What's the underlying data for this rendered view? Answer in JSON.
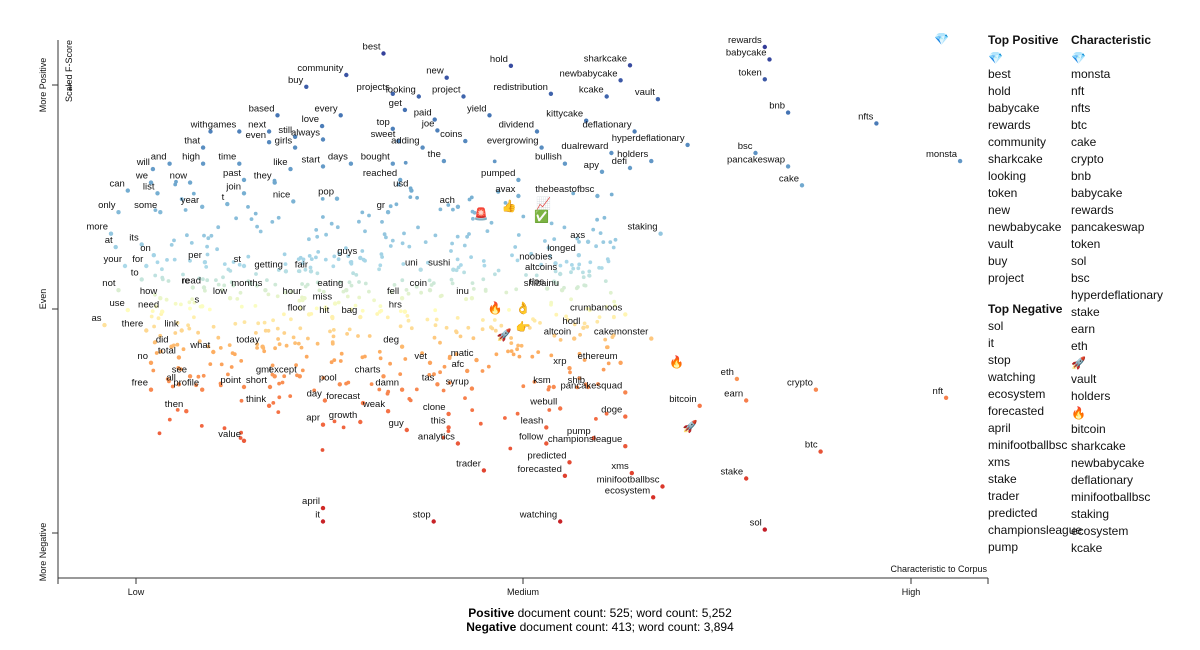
{
  "chart_data": {
    "type": "scatter",
    "title": "",
    "xlabel": "Characteristic to Corpus",
    "ylabel": "Scaled F-Score",
    "x_ticks": [
      "Low",
      "Medium",
      "High"
    ],
    "y_ticks": [
      "More Positive",
      "Even",
      "More Negative"
    ],
    "xlim": [
      0,
      1
    ],
    "ylim": [
      0,
      1
    ],
    "labeled_points": [
      {
        "term": "best",
        "x": 0.35,
        "y": 0.975
      },
      {
        "term": "hold",
        "x": 0.487,
        "y": 0.952
      },
      {
        "term": "community",
        "x": 0.31,
        "y": 0.935
      },
      {
        "term": "new",
        "x": 0.418,
        "y": 0.93
      },
      {
        "term": "buy",
        "x": 0.267,
        "y": 0.913
      },
      {
        "term": "projects",
        "x": 0.36,
        "y": 0.9
      },
      {
        "term": "looking",
        "x": 0.388,
        "y": 0.895
      },
      {
        "term": "project",
        "x": 0.436,
        "y": 0.895
      },
      {
        "term": "get",
        "x": 0.373,
        "y": 0.87
      },
      {
        "term": "paid",
        "x": 0.405,
        "y": 0.852
      },
      {
        "term": "yield",
        "x": 0.464,
        "y": 0.86
      },
      {
        "term": "every",
        "x": 0.304,
        "y": 0.86
      },
      {
        "term": "based",
        "x": 0.236,
        "y": 0.86
      },
      {
        "term": "love",
        "x": 0.284,
        "y": 0.84
      },
      {
        "term": "top",
        "x": 0.36,
        "y": 0.835
      },
      {
        "term": "joe",
        "x": 0.408,
        "y": 0.832
      },
      {
        "term": "coins",
        "x": 0.438,
        "y": 0.812
      },
      {
        "term": "with",
        "x": 0.164,
        "y": 0.83
      },
      {
        "term": "games",
        "x": 0.195,
        "y": 0.83
      },
      {
        "term": "next",
        "x": 0.227,
        "y": 0.83
      },
      {
        "term": "still",
        "x": 0.255,
        "y": 0.82
      },
      {
        "term": "always",
        "x": 0.285,
        "y": 0.815
      },
      {
        "term": "sweet",
        "x": 0.366,
        "y": 0.812
      },
      {
        "term": "even",
        "x": 0.227,
        "y": 0.81
      },
      {
        "term": "girls",
        "x": 0.255,
        "y": 0.8
      },
      {
        "term": "adding",
        "x": 0.392,
        "y": 0.8
      },
      {
        "term": "that",
        "x": 0.156,
        "y": 0.8
      },
      {
        "term": "the",
        "x": 0.415,
        "y": 0.775
      },
      {
        "term": "high",
        "x": 0.156,
        "y": 0.77
      },
      {
        "term": "time",
        "x": 0.195,
        "y": 0.77
      },
      {
        "term": "like",
        "x": 0.25,
        "y": 0.76
      },
      {
        "term": "start",
        "x": 0.285,
        "y": 0.765
      },
      {
        "term": "days",
        "x": 0.315,
        "y": 0.77
      },
      {
        "term": "bought",
        "x": 0.36,
        "y": 0.77
      },
      {
        "term": "and",
        "x": 0.12,
        "y": 0.77
      },
      {
        "term": "will",
        "x": 0.102,
        "y": 0.76
      },
      {
        "term": "reached",
        "x": 0.368,
        "y": 0.74
      },
      {
        "term": "now",
        "x": 0.142,
        "y": 0.735
      },
      {
        "term": "past",
        "x": 0.2,
        "y": 0.74
      },
      {
        "term": "they",
        "x": 0.233,
        "y": 0.735
      },
      {
        "term": "we",
        "x": 0.1,
        "y": 0.735
      },
      {
        "term": "usd",
        "x": 0.38,
        "y": 0.72
      },
      {
        "term": "list",
        "x": 0.107,
        "y": 0.715
      },
      {
        "term": "join",
        "x": 0.2,
        "y": 0.715
      },
      {
        "term": "can",
        "x": 0.075,
        "y": 0.72
      },
      {
        "term": "nice",
        "x": 0.253,
        "y": 0.7
      },
      {
        "term": "pop",
        "x": 0.3,
        "y": 0.705
      },
      {
        "term": "year",
        "x": 0.155,
        "y": 0.69
      },
      {
        "term": "t",
        "x": 0.182,
        "y": 0.695
      },
      {
        "term": "only",
        "x": 0.065,
        "y": 0.68
      },
      {
        "term": "some",
        "x": 0.11,
        "y": 0.68
      },
      {
        "term": "gr",
        "x": 0.355,
        "y": 0.68
      },
      {
        "term": "ach",
        "x": 0.43,
        "y": 0.69
      },
      {
        "term": "more",
        "x": 0.057,
        "y": 0.64
      },
      {
        "term": "its",
        "x": 0.09,
        "y": 0.62
      },
      {
        "term": "at",
        "x": 0.062,
        "y": 0.615
      },
      {
        "term": "on",
        "x": 0.103,
        "y": 0.6
      },
      {
        "term": "per",
        "x": 0.158,
        "y": 0.587
      },
      {
        "term": "st",
        "x": 0.2,
        "y": 0.58
      },
      {
        "term": "guys",
        "x": 0.325,
        "y": 0.595
      },
      {
        "term": "your",
        "x": 0.072,
        "y": 0.58
      },
      {
        "term": "for",
        "x": 0.095,
        "y": 0.58
      },
      {
        "term": "getting",
        "x": 0.245,
        "y": 0.57
      },
      {
        "term": "fair",
        "x": 0.272,
        "y": 0.57
      },
      {
        "term": "uni",
        "x": 0.39,
        "y": 0.573
      },
      {
        "term": "sushi",
        "x": 0.425,
        "y": 0.573
      },
      {
        "term": "to",
        "x": 0.09,
        "y": 0.555
      },
      {
        "term": "not",
        "x": 0.065,
        "y": 0.535
      },
      {
        "term": "re",
        "x": 0.145,
        "y": 0.54
      },
      {
        "term": "read",
        "x": 0.157,
        "y": 0.54
      },
      {
        "term": "months",
        "x": 0.223,
        "y": 0.535
      },
      {
        "term": "eating",
        "x": 0.31,
        "y": 0.535
      },
      {
        "term": "coin",
        "x": 0.4,
        "y": 0.535
      },
      {
        "term": "how",
        "x": 0.11,
        "y": 0.52
      },
      {
        "term": "low",
        "x": 0.185,
        "y": 0.52
      },
      {
        "term": "hour",
        "x": 0.265,
        "y": 0.52
      },
      {
        "term": "miss",
        "x": 0.298,
        "y": 0.51
      },
      {
        "term": "fell",
        "x": 0.37,
        "y": 0.52
      },
      {
        "term": "inu",
        "x": 0.445,
        "y": 0.52
      },
      {
        "term": "s",
        "x": 0.155,
        "y": 0.505
      },
      {
        "term": "use",
        "x": 0.075,
        "y": 0.498
      },
      {
        "term": "need",
        "x": 0.112,
        "y": 0.495
      },
      {
        "term": "floor",
        "x": 0.27,
        "y": 0.49
      },
      {
        "term": "hit",
        "x": 0.295,
        "y": 0.485
      },
      {
        "term": "bag",
        "x": 0.325,
        "y": 0.485
      },
      {
        "term": "hrs",
        "x": 0.373,
        "y": 0.495
      },
      {
        "term": "as",
        "x": 0.05,
        "y": 0.47
      },
      {
        "term": "there",
        "x": 0.095,
        "y": 0.46
      },
      {
        "term": "link",
        "x": 0.133,
        "y": 0.46
      },
      {
        "term": "today",
        "x": 0.22,
        "y": 0.43
      },
      {
        "term": "deg",
        "x": 0.37,
        "y": 0.43
      },
      {
        "term": "did",
        "x": 0.122,
        "y": 0.43
      },
      {
        "term": "what",
        "x": 0.167,
        "y": 0.42
      },
      {
        "term": "total",
        "x": 0.13,
        "y": 0.41
      },
      {
        "term": "no",
        "x": 0.1,
        "y": 0.4
      },
      {
        "term": "vet",
        "x": 0.4,
        "y": 0.4
      },
      {
        "term": "matic",
        "x": 0.45,
        "y": 0.405
      },
      {
        "term": "afc",
        "x": 0.44,
        "y": 0.385
      },
      {
        "term": "gmt",
        "x": 0.233,
        "y": 0.375
      },
      {
        "term": "except",
        "x": 0.26,
        "y": 0.375
      },
      {
        "term": "charts",
        "x": 0.35,
        "y": 0.375
      },
      {
        "term": "see",
        "x": 0.142,
        "y": 0.375
      },
      {
        "term": "all",
        "x": 0.13,
        "y": 0.36
      },
      {
        "term": "point",
        "x": 0.2,
        "y": 0.355
      },
      {
        "term": "short",
        "x": 0.228,
        "y": 0.355
      },
      {
        "term": "pool",
        "x": 0.303,
        "y": 0.36
      },
      {
        "term": "tas",
        "x": 0.408,
        "y": 0.36
      },
      {
        "term": "syrup",
        "x": 0.445,
        "y": 0.352
      },
      {
        "term": "free",
        "x": 0.1,
        "y": 0.35
      },
      {
        "term": "profile",
        "x": 0.155,
        "y": 0.35
      },
      {
        "term": "damn",
        "x": 0.37,
        "y": 0.35
      },
      {
        "term": "day",
        "x": 0.287,
        "y": 0.33
      },
      {
        "term": "forecast",
        "x": 0.328,
        "y": 0.325
      },
      {
        "term": "think",
        "x": 0.227,
        "y": 0.32
      },
      {
        "term": "weak",
        "x": 0.355,
        "y": 0.31
      },
      {
        "term": "then",
        "x": 0.138,
        "y": 0.31
      },
      {
        "term": "clone",
        "x": 0.42,
        "y": 0.305
      },
      {
        "term": "growth",
        "x": 0.325,
        "y": 0.29
      },
      {
        "term": "apr",
        "x": 0.285,
        "y": 0.285
      },
      {
        "term": "this",
        "x": 0.42,
        "y": 0.28
      },
      {
        "term": "guy",
        "x": 0.375,
        "y": 0.275
      },
      {
        "term": "value",
        "x": 0.2,
        "y": 0.255
      },
      {
        "term": "analytics",
        "x": 0.43,
        "y": 0.25
      },
      {
        "term": "trader",
        "x": 0.458,
        "y": 0.2
      },
      {
        "term": "april",
        "x": 0.285,
        "y": 0.13
      },
      {
        "term": "it",
        "x": 0.285,
        "y": 0.105
      },
      {
        "term": "stop",
        "x": 0.404,
        "y": 0.105
      },
      {
        "term": "sharkcake",
        "x": 0.615,
        "y": 0.953
      },
      {
        "term": "newbabycake",
        "x": 0.605,
        "y": 0.925
      },
      {
        "term": "redistribution",
        "x": 0.53,
        "y": 0.9
      },
      {
        "term": "kcake",
        "x": 0.59,
        "y": 0.895
      },
      {
        "term": "vault",
        "x": 0.645,
        "y": 0.89
      },
      {
        "term": "kittycake",
        "x": 0.568,
        "y": 0.85
      },
      {
        "term": "dividend",
        "x": 0.515,
        "y": 0.83
      },
      {
        "term": "deflationary",
        "x": 0.62,
        "y": 0.83
      },
      {
        "term": "evergrowing",
        "x": 0.52,
        "y": 0.8
      },
      {
        "term": "hyperdeflationary",
        "x": 0.677,
        "y": 0.805
      },
      {
        "term": "dualreward",
        "x": 0.595,
        "y": 0.79
      },
      {
        "term": "holders",
        "x": 0.638,
        "y": 0.775
      },
      {
        "term": "bullish",
        "x": 0.545,
        "y": 0.77
      },
      {
        "term": "defi",
        "x": 0.615,
        "y": 0.762
      },
      {
        "term": "apy",
        "x": 0.585,
        "y": 0.755
      },
      {
        "term": "pumped",
        "x": 0.495,
        "y": 0.74
      },
      {
        "term": "avax",
        "x": 0.495,
        "y": 0.71
      },
      {
        "term": "thebeastofbsc",
        "x": 0.58,
        "y": 0.71
      },
      {
        "term": "staking",
        "x": 0.648,
        "y": 0.64
      },
      {
        "term": "axs",
        "x": 0.57,
        "y": 0.625
      },
      {
        "term": "longed",
        "x": 0.56,
        "y": 0.6
      },
      {
        "term": "noobies",
        "x": 0.535,
        "y": 0.585
      },
      {
        "term": "altcoins",
        "x": 0.54,
        "y": 0.565
      },
      {
        "term": "shibainu",
        "x": 0.542,
        "y": 0.535
      },
      {
        "term": "tlos",
        "x": 0.526,
        "y": 0.538
      },
      {
        "term": "crumbanoos",
        "x": 0.61,
        "y": 0.49
      },
      {
        "term": "hodl",
        "x": 0.565,
        "y": 0.465
      },
      {
        "term": "cakemonster",
        "x": 0.638,
        "y": 0.445
      },
      {
        "term": "altcoin",
        "x": 0.555,
        "y": 0.445
      },
      {
        "term": "ethereum",
        "x": 0.605,
        "y": 0.4
      },
      {
        "term": "xrp",
        "x": 0.55,
        "y": 0.39
      },
      {
        "term": "shib",
        "x": 0.57,
        "y": 0.355
      },
      {
        "term": "ksm",
        "x": 0.533,
        "y": 0.355
      },
      {
        "term": "pancakesquad",
        "x": 0.61,
        "y": 0.345
      },
      {
        "term": "webull",
        "x": 0.54,
        "y": 0.315
      },
      {
        "term": "doge",
        "x": 0.61,
        "y": 0.3
      },
      {
        "term": "leash",
        "x": 0.525,
        "y": 0.28
      },
      {
        "term": "pump",
        "x": 0.576,
        "y": 0.26
      },
      {
        "term": "follow",
        "x": 0.525,
        "y": 0.25
      },
      {
        "term": "championsleague",
        "x": 0.61,
        "y": 0.245
      },
      {
        "term": "predicted",
        "x": 0.55,
        "y": 0.215
      },
      {
        "term": "forecasted",
        "x": 0.545,
        "y": 0.19
      },
      {
        "term": "xms",
        "x": 0.617,
        "y": 0.195
      },
      {
        "term": "minifootballbsc",
        "x": 0.65,
        "y": 0.17
      },
      {
        "term": "ecosystem",
        "x": 0.64,
        "y": 0.15
      },
      {
        "term": "watching",
        "x": 0.54,
        "y": 0.105
      },
      {
        "term": "rewards",
        "x": 0.76,
        "y": 0.987
      },
      {
        "term": "babycake",
        "x": 0.765,
        "y": 0.964
      },
      {
        "term": "token",
        "x": 0.76,
        "y": 0.927
      },
      {
        "term": "bnb",
        "x": 0.785,
        "y": 0.865
      },
      {
        "term": "nfts",
        "x": 0.88,
        "y": 0.845
      },
      {
        "term": "bsc",
        "x": 0.75,
        "y": 0.79
      },
      {
        "term": "pancakeswap",
        "x": 0.785,
        "y": 0.765
      },
      {
        "term": "cake",
        "x": 0.8,
        "y": 0.73
      },
      {
        "term": "monsta",
        "x": 0.97,
        "y": 0.775
      },
      {
        "term": "eth",
        "x": 0.73,
        "y": 0.37
      },
      {
        "term": "earn",
        "x": 0.74,
        "y": 0.33
      },
      {
        "term": "crypto",
        "x": 0.815,
        "y": 0.35
      },
      {
        "term": "nft",
        "x": 0.955,
        "y": 0.335
      },
      {
        "term": "bitcoin",
        "x": 0.69,
        "y": 0.32
      },
      {
        "term": "btc",
        "x": 0.82,
        "y": 0.235
      },
      {
        "term": "stake",
        "x": 0.74,
        "y": 0.185
      },
      {
        "term": "sol",
        "x": 0.76,
        "y": 0.09
      }
    ],
    "emoji_points": [
      {
        "glyph": "💎",
        "x": 0.95,
        "y": 1.0
      },
      {
        "glyph": "🚀",
        "x": 0.68,
        "y": 0.28
      },
      {
        "glyph": "🔥",
        "x": 0.665,
        "y": 0.4
      },
      {
        "glyph": "🔥",
        "x": 0.47,
        "y": 0.5
      },
      {
        "glyph": "👍",
        "x": 0.485,
        "y": 0.69
      },
      {
        "glyph": "👉",
        "x": 0.5,
        "y": 0.465
      },
      {
        "glyph": "📈",
        "x": 0.522,
        "y": 0.695
      },
      {
        "glyph": "✅",
        "x": 0.52,
        "y": 0.67
      },
      {
        "glyph": "🚨",
        "x": 0.455,
        "y": 0.675
      },
      {
        "glyph": "👌",
        "x": 0.5,
        "y": 0.5
      },
      {
        "glyph": "🚀",
        "x": 0.48,
        "y": 0.45
      }
    ],
    "legend": {
      "top_positive": {
        "heading": "Top Positive",
        "icon": "💎",
        "terms": [
          "best",
          "hold",
          "babycake",
          "rewards",
          "community",
          "sharkcake",
          "looking",
          "token",
          "new",
          "newbabycake",
          "vault",
          "buy",
          "project"
        ]
      },
      "top_negative": {
        "heading": "Top Negative",
        "terms": [
          "sol",
          "it",
          "stop",
          "watching",
          "ecosystem",
          "forecasted",
          "april",
          "minifootballbsc",
          "xms",
          "stake",
          "trader",
          "predicted",
          "championsleague",
          "pump"
        ]
      },
      "characteristic": {
        "heading": "Characteristic",
        "groups": [
          {
            "icon": "💎",
            "terms": [
              "monsta",
              "nft",
              "nfts",
              "btc",
              "cake",
              "crypto",
              "bnb",
              "babycake",
              "rewards",
              "pancakeswap",
              "token",
              "sol",
              "bsc",
              "hyperdeflationary",
              "stake",
              "earn",
              "eth"
            ]
          },
          {
            "icon": "🚀",
            "terms": [
              "vault",
              "holders"
            ]
          },
          {
            "icon": "🔥",
            "terms": [
              "bitcoin",
              "sharkcake",
              "newbabycake",
              "deflationary",
              "minifootballbsc",
              "staking",
              "ecosystem",
              "kcake"
            ]
          }
        ]
      }
    },
    "colors": {
      "positive": "#313695",
      "neutral": "#ffffbf",
      "negative": "#a50026"
    }
  },
  "counts": {
    "positive": {
      "label": "Positive",
      "text": " document count: 525; word count: 5,252"
    },
    "negative": {
      "label": "Negative",
      "text": " document count: 413; word count: 3,894"
    }
  }
}
